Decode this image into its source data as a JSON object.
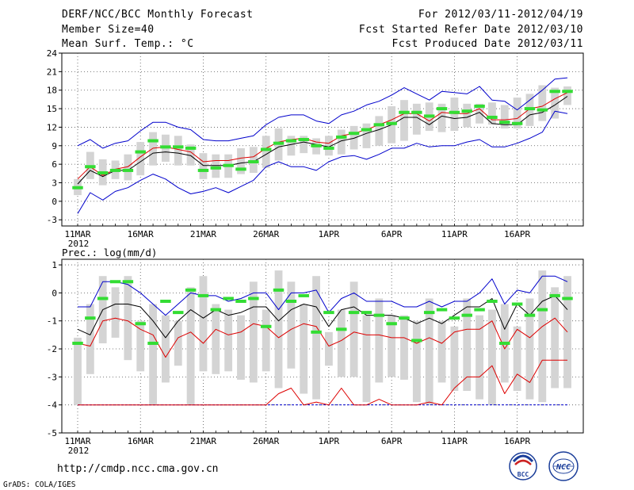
{
  "header": {
    "title": "DERF/NCC/BCC Monthly Forecast",
    "member_size": "Member Size=40",
    "variable": "Mean Surf. Temp.: °C",
    "period": "For 2012/03/11-2012/04/19",
    "start_date": "Fcst Started Refer Date 2012/03/10",
    "produced_date": "Fcst Produced Date 2012/03/11"
  },
  "footer": {
    "url": "http://cmdp.ncc.cma.gov.cn",
    "grads": "GrADS: COLA/IGES",
    "logo_bcc": "BCC",
    "logo_ncc": "NCC"
  },
  "colors": {
    "box": "#d4d4d4",
    "ensemble_mean": "#000000",
    "climate_mean": "#dd0000",
    "extreme": "#0000cc",
    "observed": "#33dd33",
    "grid": "#555555"
  },
  "chart_data": [
    {
      "type": "box-line",
      "title": "Mean Surf. Temp.: °C",
      "ylabel": "°C",
      "ylim": [
        -4,
        24
      ],
      "yticks": [
        -3,
        0,
        3,
        6,
        9,
        12,
        15,
        18,
        21,
        24
      ],
      "xtick_labels": [
        "11MAR",
        "16MAR",
        "21MAR",
        "26MAR",
        "1APR",
        "6APR",
        "11APR",
        "16APR"
      ],
      "year_label": "2012",
      "days": 40,
      "box_low": [
        1.0,
        3.6,
        2.6,
        3.6,
        3.4,
        4.2,
        5.8,
        6.4,
        5.8,
        5.8,
        3.6,
        3.8,
        3.8,
        4.4,
        4.6,
        5.4,
        6.6,
        7.4,
        7.8,
        7.6,
        7.4,
        7.6,
        8.4,
        8.6,
        9.0,
        9.4,
        9.8,
        10.8,
        11.4,
        11.2,
        11.4,
        12.0,
        12.6,
        12.4,
        11.8,
        11.8,
        12.2,
        13.0,
        13.4,
        15.6
      ],
      "box_high": [
        3.6,
        8.0,
        6.8,
        6.6,
        7.6,
        9.6,
        11.2,
        10.8,
        10.6,
        9.2,
        7.8,
        7.6,
        7.6,
        8.6,
        8.8,
        10.6,
        11.8,
        10.6,
        10.6,
        10.2,
        10.6,
        11.6,
        12.2,
        12.6,
        13.8,
        15.4,
        16.4,
        15.8,
        16.0,
        15.8,
        16.8,
        15.8,
        15.8,
        16.0,
        15.6,
        16.8,
        17.4,
        18.8,
        18.4,
        18.6
      ],
      "ensemble_mean": [
        2.8,
        5.0,
        4.0,
        5.0,
        5.0,
        6.4,
        7.8,
        8.0,
        7.8,
        7.4,
        5.8,
        5.8,
        5.8,
        6.2,
        6.4,
        7.6,
        8.8,
        9.2,
        9.6,
        9.2,
        8.8,
        9.8,
        10.2,
        11.0,
        11.6,
        12.4,
        13.6,
        13.6,
        12.4,
        13.8,
        13.4,
        13.6,
        14.4,
        12.6,
        12.4,
        12.4,
        14.0,
        14.4,
        15.6,
        17.0
      ],
      "climate_mean": [
        3.6,
        5.6,
        4.2,
        5.2,
        5.6,
        7.2,
        8.6,
        8.8,
        8.4,
        8.0,
        6.4,
        6.6,
        6.6,
        7.0,
        7.2,
        8.6,
        9.6,
        10.0,
        10.2,
        9.6,
        9.4,
        10.6,
        11.0,
        11.6,
        12.4,
        13.2,
        14.2,
        14.2,
        13.0,
        14.4,
        14.2,
        14.2,
        15.0,
        13.2,
        13.2,
        13.4,
        15.0,
        15.4,
        16.6,
        17.6
      ],
      "extreme_max": [
        9.0,
        10.0,
        8.6,
        9.4,
        9.8,
        11.4,
        12.8,
        12.8,
        12.0,
        11.6,
        10.0,
        9.8,
        9.8,
        10.2,
        10.6,
        12.4,
        13.6,
        14.0,
        14.0,
        13.0,
        12.6,
        14.0,
        14.6,
        15.6,
        16.2,
        17.2,
        18.4,
        17.4,
        16.4,
        17.8,
        17.6,
        17.4,
        18.6,
        16.4,
        16.2,
        14.8,
        16.4,
        18.0,
        19.8,
        20.0
      ],
      "extreme_min": [
        -2.0,
        1.4,
        0.2,
        1.6,
        2.2,
        3.4,
        4.4,
        3.6,
        2.2,
        1.2,
        1.6,
        2.2,
        1.4,
        2.4,
        3.4,
        5.6,
        6.4,
        5.6,
        5.6,
        5.0,
        6.4,
        7.2,
        7.4,
        6.8,
        7.6,
        8.6,
        8.6,
        9.4,
        8.8,
        9.0,
        9.0,
        9.6,
        10.0,
        8.8,
        8.8,
        9.4,
        10.2,
        11.2,
        14.6,
        14.2
      ],
      "observed": [
        2.2,
        5.6,
        4.6,
        5.0,
        5.0,
        8.0,
        9.8,
        8.8,
        8.8,
        8.6,
        5.0,
        5.4,
        5.8,
        5.2,
        6.4,
        8.4,
        9.4,
        9.8,
        10.0,
        9.0,
        8.6,
        10.4,
        11.0,
        11.6,
        12.4,
        12.6,
        14.4,
        14.4,
        13.8,
        15.0,
        14.4,
        14.6,
        15.4,
        13.6,
        12.8,
        12.6,
        15.0,
        14.8,
        17.8,
        17.8
      ]
    },
    {
      "type": "box-line",
      "title": "Prec.: log(mm/d)",
      "ylabel": "log(mm/d)",
      "ylim": [
        -5,
        1.2
      ],
      "yticks": [
        -5,
        -4,
        -3,
        -2,
        -1,
        0,
        1
      ],
      "xtick_labels": [
        "11MAR",
        "16MAR",
        "21MAR",
        "26MAR",
        "1APR",
        "6APR",
        "11APR",
        "16APR"
      ],
      "year_label": "2012",
      "days": 40,
      "box_low": [
        -4.0,
        -2.9,
        -1.8,
        -1.6,
        -2.4,
        -2.8,
        -4.0,
        -3.2,
        -2.6,
        -4.0,
        -2.8,
        -2.9,
        -2.8,
        -3.1,
        -3.2,
        -2.8,
        -3.4,
        -2.7,
        -3.6,
        -3.8,
        -2.6,
        -3.0,
        -3.0,
        -3.9,
        -3.2,
        -3.0,
        -3.1,
        -3.9,
        -4.0,
        -3.2,
        -3.5,
        -3.5,
        -3.8,
        -4.0,
        -3.2,
        -3.5,
        -3.8,
        -3.9,
        -3.4,
        -3.4
      ],
      "box_high": [
        -1.6,
        -0.4,
        0.6,
        0.2,
        0.6,
        -1.0,
        -0.4,
        -0.8,
        -1.0,
        0.2,
        0.6,
        -0.4,
        -0.6,
        -0.8,
        0.4,
        -0.6,
        0.8,
        0.4,
        -0.4,
        0.6,
        -1.4,
        -0.6,
        0.4,
        -0.8,
        -0.2,
        -0.8,
        -0.8,
        -1.0,
        -0.2,
        -1.0,
        -1.2,
        -0.2,
        -0.8,
        -0.6,
        -0.4,
        -1.2,
        -0.2,
        0.8,
        0.2,
        0.6
      ],
      "ensemble_mean": [
        -1.3,
        -1.5,
        -0.6,
        -0.4,
        -0.4,
        -0.5,
        -1.0,
        -1.6,
        -1.0,
        -0.6,
        -0.9,
        -0.6,
        -0.8,
        -0.7,
        -0.5,
        -0.5,
        -1.0,
        -0.6,
        -0.4,
        -0.5,
        -1.2,
        -0.6,
        -0.5,
        -0.8,
        -0.8,
        -0.8,
        -0.9,
        -1.1,
        -0.9,
        -1.1,
        -0.8,
        -0.5,
        -0.5,
        -0.2,
        -1.3,
        -0.4,
        -0.8,
        -0.3,
        -0.1,
        -0.6
      ],
      "climate_mean": [
        -1.8,
        -1.9,
        -1.0,
        -0.9,
        -1.0,
        -1.3,
        -1.5,
        -2.3,
        -1.6,
        -1.4,
        -1.8,
        -1.3,
        -1.5,
        -1.4,
        -1.1,
        -1.2,
        -1.6,
        -1.3,
        -1.1,
        -1.2,
        -1.9,
        -1.7,
        -1.4,
        -1.5,
        -1.5,
        -1.6,
        -1.6,
        -1.8,
        -1.6,
        -1.8,
        -1.4,
        -1.3,
        -1.3,
        -1.0,
        -2.0,
        -1.3,
        -1.6,
        -1.2,
        -0.9,
        -1.4
      ],
      "extreme_max": [
        -0.5,
        -0.5,
        0.4,
        0.4,
        0.3,
        0.0,
        -0.4,
        -0.8,
        -0.4,
        0.0,
        -0.1,
        -0.1,
        -0.3,
        -0.2,
        0.0,
        0.0,
        -0.6,
        0.0,
        0.0,
        0.1,
        -0.7,
        -0.2,
        0.0,
        -0.3,
        -0.3,
        -0.3,
        -0.5,
        -0.5,
        -0.3,
        -0.5,
        -0.3,
        -0.3,
        0.0,
        0.5,
        -0.4,
        0.1,
        0.0,
        0.6,
        0.6,
        0.4
      ],
      "extreme_min": [
        -4.0,
        -4.0,
        -4.0,
        -4.0,
        -4.0,
        -4.0,
        -4.0,
        -4.0,
        -4.0,
        -4.0,
        -4.0,
        -4.0,
        -4.0,
        -4.0,
        -4.0,
        -4.0,
        -3.6,
        -3.4,
        -4.0,
        -3.9,
        -4.0,
        -3.4,
        -4.0,
        -4.0,
        -3.8,
        -4.0,
        -4.0,
        -4.0,
        -3.9,
        -4.0,
        -3.4,
        -3.0,
        -3.0,
        -2.6,
        -3.6,
        -2.9,
        -3.2,
        -2.4,
        -2.4,
        -2.4
      ],
      "minimum_line": -4.0,
      "observed": [
        -1.8,
        -0.9,
        -0.2,
        0.4,
        0.4,
        -1.1,
        -1.8,
        -0.3,
        -0.7,
        0.1,
        -0.1,
        -0.6,
        -0.2,
        -0.3,
        -0.2,
        -1.2,
        0.1,
        -0.3,
        -0.1,
        -1.4,
        -0.7,
        -1.3,
        -0.7,
        -0.7,
        -0.8,
        -1.1,
        -0.9,
        -1.7,
        -0.7,
        -0.6,
        -0.9,
        -0.8,
        -0.6,
        -0.3,
        -1.8,
        -0.4,
        -0.8,
        -0.6,
        -0.1,
        -0.2
      ]
    }
  ]
}
